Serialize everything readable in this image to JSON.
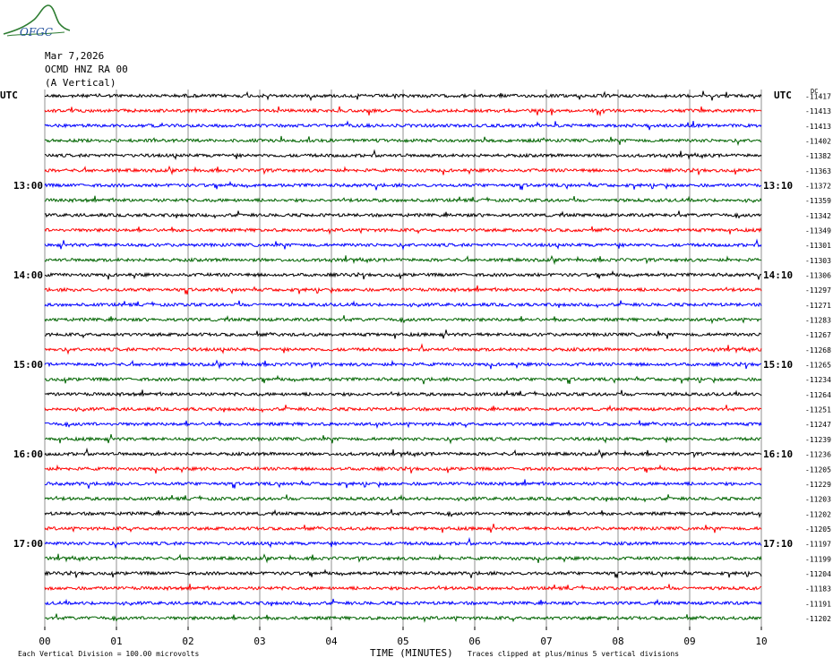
{
  "header": {
    "logo_text": "OFGC",
    "date": "Mar 7,2026",
    "station": "OCMD HNZ RA 00",
    "component": "(A Vertical)"
  },
  "colors": {
    "trace_cycle": [
      "#000000",
      "#ff0000",
      "#0000ff",
      "#006400"
    ],
    "grid": "#777777",
    "logo": "#2e7d32",
    "logo_text": "#1f4e9c"
  },
  "chart_data": {
    "type": "line",
    "title": "",
    "xlabel": "TIME (MINUTES)",
    "ylabel": "UTC",
    "ylabel_right": "UTC",
    "dc_header": "DC",
    "xlim": [
      0,
      10
    ],
    "x_ticks": [
      "00",
      "01",
      "02",
      "03",
      "04",
      "05",
      "06",
      "07",
      "08",
      "09",
      "10"
    ],
    "left_hour_labels": [
      {
        "row": 6,
        "label": "13:00"
      },
      {
        "row": 12,
        "label": "14:00"
      },
      {
        "row": 18,
        "label": "15:00"
      },
      {
        "row": 24,
        "label": "16:00"
      },
      {
        "row": 30,
        "label": "17:00"
      }
    ],
    "right_hour_labels": [
      {
        "row": 6,
        "label": "13:10"
      },
      {
        "row": 12,
        "label": "14:10"
      },
      {
        "row": 18,
        "label": "15:10"
      },
      {
        "row": 24,
        "label": "16:10"
      },
      {
        "row": 30,
        "label": "17:10"
      }
    ],
    "dc_offsets": [
      "-11417",
      "-11413",
      "-11413",
      "-11402",
      "-11382",
      "-11363",
      "-11372",
      "-11359",
      "-11342",
      "-11349",
      "-11301",
      "-11303",
      "-11306",
      "-11297",
      "-11271",
      "-11283",
      "-11267",
      "-11268",
      "-11265",
      "-11234",
      "-11264",
      "-11251",
      "-11247",
      "-11239",
      "-11236",
      "-11205",
      "-11229",
      "-11203",
      "-11202",
      "-11205",
      "-11197",
      "-11199",
      "-11204",
      "-11183",
      "-11191",
      "-11202"
    ],
    "footer_left": "Each Vertical Division =  100.00 microvolts",
    "footer_right": "Traces clipped at plus/minus 5 vertical divisions"
  }
}
